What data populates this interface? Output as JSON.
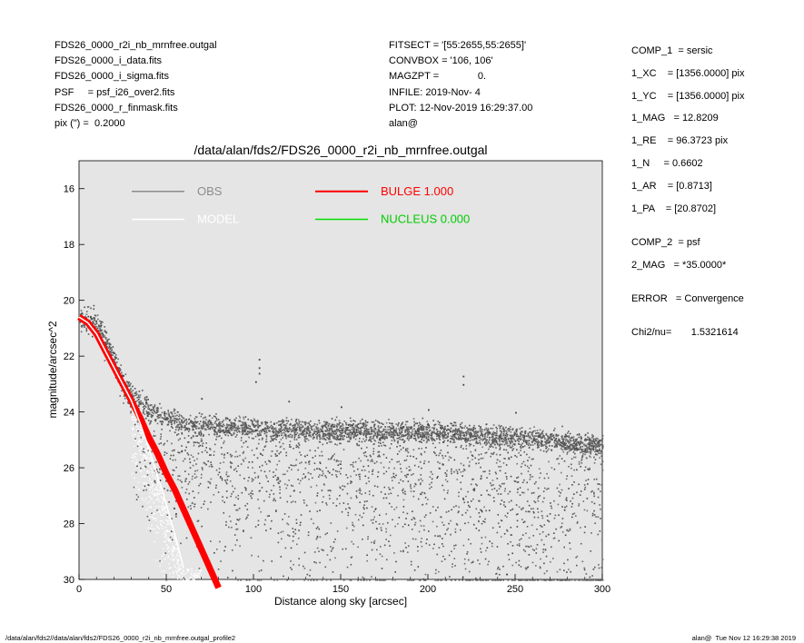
{
  "header_left": [
    "FDS26_0000_r2i_nb_mrnfree.outgal",
    "FDS26_0000_i_data.fits",
    "FDS26_0000_i_sigma.fits",
    "PSF     = psf_i26_over2.fits",
    "FDS26_0000_r_finmask.fits",
    "pix (\") =  0.2000"
  ],
  "header_mid": [
    "FITSECT = '[55:2655,55:2655]'",
    "CONVBOX = '106, 106'",
    "MAGZPT =              0.",
    "INFILE: 2019-Nov- 4",
    "PLOT: 12-Nov-2019 16:29:37.00",
    "alan@"
  ],
  "params": [
    "COMP_1  = sersic",
    "1_XC    = [1356.0000] pix",
    "1_YC    = [1356.0000] pix",
    "1_MAG   = 12.8209",
    "1_RE    = 96.3723 pix",
    "1_N     = 0.6602",
    "1_AR    = [0.8713]",
    "1_PA    = [20.8702]",
    "COMP_2  = psf",
    "2_MAG   = *35.0000*",
    "ERROR   = Convergence",
    "Chi2/nu=       1.5321614"
  ],
  "footer_left": "/data/alan/fds2//data/alan/fds2/FDS26_0000_r2i_nb_mrnfree.outgal_profile2",
  "footer_right": "alan@  Tue Nov 12 16:29:38 2019",
  "chart_data": {
    "type": "scatter",
    "title": "/data/alan/fds2/FDS26_0000_r2i_nb_mrnfree.outgal",
    "xlabel": "Distance along sky [arcsec]",
    "ylabel": "magnitude/arcsec^2",
    "xlim": [
      0,
      300
    ],
    "ylim": [
      30,
      15
    ],
    "y_inverted": true,
    "xticks": [
      0,
      50,
      100,
      150,
      200,
      250,
      300
    ],
    "yticks": [
      16,
      18,
      20,
      22,
      24,
      26,
      28,
      30
    ],
    "background": "#e5e5e5",
    "grid": false,
    "legend": [
      {
        "label": "OBS",
        "color": "#8c8c8c"
      },
      {
        "label": "MODEL",
        "color": "#ffffff"
      },
      {
        "label": "BULGE  1.000",
        "color": "#ff0000"
      },
      {
        "label": "NUCLEUS  0.000",
        "color": "#00e000"
      }
    ],
    "series": [
      {
        "name": "OBS",
        "color": "#555555",
        "description_points": {
          "x": [
            0,
            5,
            10,
            15,
            20,
            25,
            30,
            35,
            40,
            50,
            60,
            80,
            100,
            150,
            200,
            250,
            300
          ],
          "y": [
            20.6,
            20.5,
            20.7,
            21.3,
            22.1,
            22.8,
            23.3,
            23.6,
            23.9,
            24.2,
            24.4,
            24.5,
            24.6,
            24.65,
            24.7,
            24.9,
            25.2
          ]
        }
      },
      {
        "name": "BULGE  1.000",
        "color": "#ff0000",
        "x": [
          0,
          5,
          10,
          15,
          20,
          25,
          30,
          35,
          40,
          45,
          50,
          55,
          60,
          65,
          70,
          75,
          80
        ],
        "y": [
          20.6,
          20.8,
          21.2,
          21.8,
          22.4,
          23.0,
          23.6,
          24.2,
          24.9,
          25.5,
          26.2,
          26.8,
          27.5,
          28.2,
          28.9,
          29.6,
          30.3
        ]
      },
      {
        "name": "MODEL",
        "color": "#ffffff",
        "x": [
          0,
          5,
          10,
          15,
          20,
          25,
          30,
          35,
          40,
          45,
          50,
          55,
          60
        ],
        "y": [
          20.6,
          20.8,
          21.2,
          21.8,
          22.4,
          23.0,
          23.6,
          24.4,
          25.3,
          26.3,
          27.3,
          28.4,
          29.6
        ]
      }
    ]
  }
}
